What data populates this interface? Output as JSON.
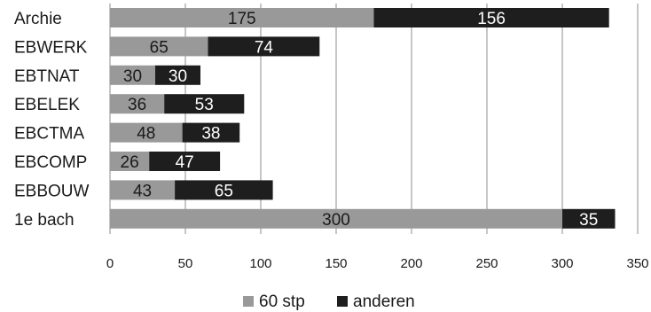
{
  "chart_data": {
    "type": "bar",
    "orientation": "horizontal",
    "stacked": true,
    "categories": [
      "Archie",
      "EBWERK",
      "EBTNAT",
      "EBELEK",
      "EBCTMA",
      "EBCOMP",
      "EBBOUW",
      "1e bach"
    ],
    "series": [
      {
        "name": "60 stp",
        "color": "#999999",
        "label_color": "#1a1a1a",
        "values": [
          175,
          65,
          30,
          36,
          48,
          26,
          43,
          300
        ]
      },
      {
        "name": "anderen",
        "color": "#1e1e1e",
        "label_color": "#ffffff",
        "values": [
          156,
          74,
          30,
          53,
          38,
          47,
          65,
          35
        ]
      }
    ],
    "xlim": [
      0,
      350
    ],
    "xticks": [
      0,
      50,
      100,
      150,
      200,
      250,
      300,
      350
    ],
    "grid": "vertical",
    "legend": "bottom",
    "title": "",
    "xlabel": "",
    "ylabel": ""
  }
}
